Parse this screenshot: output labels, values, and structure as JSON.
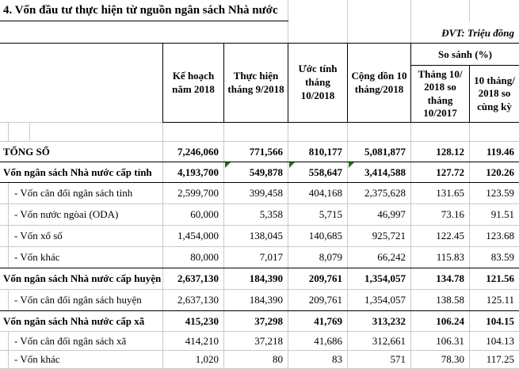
{
  "title": "4. Vốn đầu tư thực hiện từ nguồn ngân sách Nhà nước",
  "unit_note": "ĐVT: Triệu đồng",
  "colors": {
    "grid_line": "#c9c9c9",
    "table_border": "#000000",
    "marker_green": "#008000"
  },
  "table": {
    "columns": [
      "Kế hoạch năm 2018",
      "Thực hiện tháng 9/2018",
      "Ước tính tháng 10/2018",
      "Cộng dồn 10 tháng/2018"
    ],
    "compare_group": "So sánh (%)",
    "compare_columns": [
      "Tháng 10/ 2018 so tháng 10/2017",
      "10 tháng/ 2018 so cùng kỳ"
    ],
    "rows": [
      {
        "style": "total",
        "label": "TỔNG SỐ",
        "values": [
          "7,246,060",
          "771,566",
          "810,177",
          "5,081,877",
          "128.12",
          "119.46"
        ]
      },
      {
        "style": "section",
        "label": "Vốn ngân sách Nhà nước cấp tỉnh",
        "values": [
          "4,193,700",
          "549,878",
          "558,647",
          "3,414,588",
          "127.72",
          "120.26"
        ],
        "markers": [
          1,
          2,
          3
        ]
      },
      {
        "style": "sub",
        "label": "- Vốn cân đối ngân sách tỉnh",
        "values": [
          "2,599,700",
          "399,458",
          "404,168",
          "2,375,628",
          "131.65",
          "123.59"
        ]
      },
      {
        "style": "sub",
        "label": "- Vốn nước ngòai (ODA)",
        "values": [
          "60,000",
          "5,358",
          "5,715",
          "46,997",
          "73.16",
          "91.51"
        ]
      },
      {
        "style": "sub",
        "label": "- Vốn xổ số",
        "values": [
          "1,454,000",
          "138,045",
          "140,685",
          "925,721",
          "122.45",
          "123.68"
        ]
      },
      {
        "style": "sub",
        "label": "- Vốn khác",
        "values": [
          "80,000",
          "7,017",
          "8,079",
          "66,242",
          "115.83",
          "83.59"
        ]
      },
      {
        "style": "section",
        "label": "Vốn ngân sách Nhà nước cấp huyện",
        "values": [
          "2,637,130",
          "184,390",
          "209,761",
          "1,354,057",
          "134.78",
          "121.56"
        ]
      },
      {
        "style": "sub",
        "label": "- Vốn cân đối ngân sách huyện",
        "values": [
          "2,637,130",
          "184,390",
          "209,761",
          "1,354,057",
          "138.58",
          "125.11"
        ]
      },
      {
        "style": "section",
        "label": "Vốn ngân sách Nhà nước cấp xã",
        "values": [
          "415,230",
          "37,298",
          "41,769",
          "313,232",
          "106.24",
          "104.15"
        ]
      },
      {
        "style": "sub",
        "label": "- Vốn cân đối ngân sách xã",
        "values": [
          "414,210",
          "37,218",
          "41,686",
          "312,661",
          "106.31",
          "104.13"
        ]
      },
      {
        "style": "sub",
        "label": "- Vốn khác",
        "values": [
          "1,020",
          "80",
          "83",
          "571",
          "78.30",
          "117.25"
        ]
      }
    ]
  }
}
